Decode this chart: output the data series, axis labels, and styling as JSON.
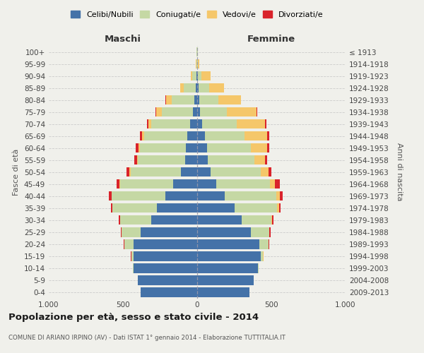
{
  "age_groups": [
    "0-4",
    "5-9",
    "10-14",
    "15-19",
    "20-24",
    "25-29",
    "30-34",
    "35-39",
    "40-44",
    "45-49",
    "50-54",
    "55-59",
    "60-64",
    "65-69",
    "70-74",
    "75-79",
    "80-84",
    "85-89",
    "90-94",
    "95-99",
    "100+"
  ],
  "birth_years": [
    "2009-2013",
    "2004-2008",
    "1999-2003",
    "1994-1998",
    "1989-1993",
    "1984-1988",
    "1979-1983",
    "1974-1978",
    "1969-1973",
    "1964-1968",
    "1959-1963",
    "1954-1958",
    "1949-1953",
    "1944-1948",
    "1939-1943",
    "1934-1938",
    "1929-1933",
    "1924-1928",
    "1919-1923",
    "1914-1918",
    "≤ 1913"
  ],
  "male": {
    "celibi": [
      380,
      400,
      430,
      430,
      430,
      380,
      310,
      270,
      215,
      160,
      110,
      80,
      75,
      65,
      50,
      30,
      20,
      10,
      5,
      2,
      2
    ],
    "coniugati": [
      1,
      2,
      5,
      15,
      60,
      130,
      210,
      300,
      360,
      360,
      340,
      320,
      310,
      290,
      260,
      210,
      150,
      80,
      30,
      5,
      2
    ],
    "vedovi": [
      0,
      0,
      0,
      0,
      1,
      1,
      1,
      2,
      3,
      5,
      5,
      5,
      10,
      15,
      20,
      35,
      40,
      25,
      10,
      2,
      0
    ],
    "divorziati": [
      0,
      0,
      0,
      1,
      2,
      5,
      8,
      10,
      18,
      20,
      20,
      18,
      20,
      15,
      10,
      5,
      2,
      0,
      0,
      0,
      0
    ]
  },
  "female": {
    "nubili": [
      350,
      380,
      410,
      430,
      420,
      360,
      300,
      250,
      185,
      130,
      90,
      70,
      65,
      50,
      35,
      20,
      15,
      10,
      5,
      2,
      2
    ],
    "coniugate": [
      1,
      2,
      5,
      15,
      60,
      125,
      200,
      290,
      350,
      360,
      340,
      315,
      295,
      270,
      230,
      180,
      130,
      70,
      25,
      5,
      2
    ],
    "vedove": [
      0,
      0,
      0,
      1,
      2,
      3,
      5,
      10,
      20,
      35,
      50,
      70,
      110,
      150,
      190,
      200,
      150,
      100,
      60,
      8,
      1
    ],
    "divorziate": [
      0,
      0,
      0,
      1,
      2,
      5,
      8,
      12,
      20,
      30,
      22,
      18,
      18,
      15,
      10,
      5,
      2,
      2,
      0,
      0,
      0
    ]
  },
  "colors": {
    "celibi_nubili": "#4472a8",
    "coniugati": "#c5d8a4",
    "vedovi": "#f5c76a",
    "divorziati": "#d9232b"
  },
  "xlim": 1000,
  "title": "Popolazione per età, sesso e stato civile - 2014",
  "subtitle": "COMUNE DI ARIANO IRPINO (AV) - Dati ISTAT 1° gennaio 2014 - Elaborazione TUTTITALIA.IT",
  "ylabel_left": "Fasce di età",
  "ylabel_right": "Anni di nascita",
  "xlabel_left": "Maschi",
  "xlabel_right": "Femmine",
  "background_color": "#f0f0eb",
  "grid_color": "#c8c8c8",
  "legend_labels": [
    "Celibi/Nubili",
    "Coniugati/e",
    "Vedovi/e",
    "Divorziati/e"
  ]
}
